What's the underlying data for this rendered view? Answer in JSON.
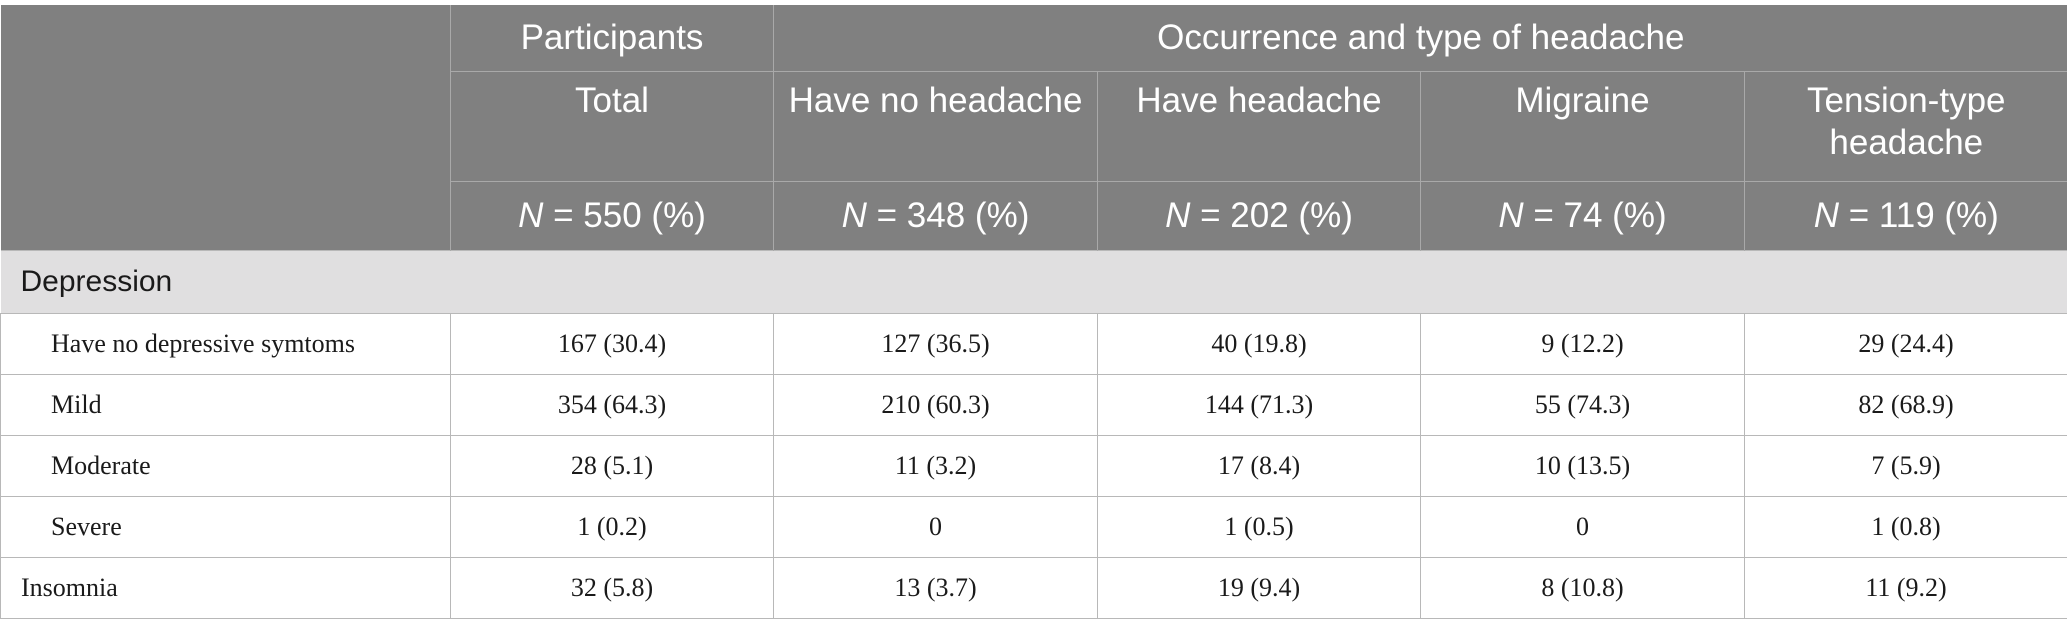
{
  "header": {
    "group_participants": "Participants",
    "group_headache": "Occurrence and type of headache",
    "columns": [
      "Total",
      "Have no headache",
      "Have headache",
      "Migraine",
      "Tension-type headache"
    ],
    "n_labels": [
      {
        "n": "N",
        "rest": " = 550 (%)"
      },
      {
        "n": "N",
        "rest": " = 348 (%)"
      },
      {
        "n": "N",
        "rest": " = 202 (%)"
      },
      {
        "n": "N",
        "rest": " = 74 (%)"
      },
      {
        "n": "N",
        "rest": " = 119 (%)"
      }
    ]
  },
  "sections": {
    "depression": "Depression"
  },
  "rows": [
    {
      "label": "Have no depressive symtoms",
      "values": [
        "167 (30.4)",
        "127 (36.5)",
        "40 (19.8)",
        "9 (12.2)",
        "29 (24.4)"
      ]
    },
    {
      "label": "Mild",
      "values": [
        "354 (64.3)",
        "210 (60.3)",
        "144 (71.3)",
        "55 (74.3)",
        "82 (68.9)"
      ]
    },
    {
      "label": "Moderate",
      "values": [
        "28 (5.1)",
        "11 (3.2)",
        "17 (8.4)",
        "10 (13.5)",
        "7 (5.9)"
      ]
    },
    {
      "label": "Severe",
      "values": [
        "1 (0.2)",
        "0",
        "1 (0.5)",
        "0",
        "1 (0.8)"
      ]
    },
    {
      "label": "Insomnia",
      "values": [
        "32 (5.8)",
        "13 (3.7)",
        "19 (9.4)",
        "8 (10.8)",
        "11 (9.2)"
      ]
    }
  ]
}
